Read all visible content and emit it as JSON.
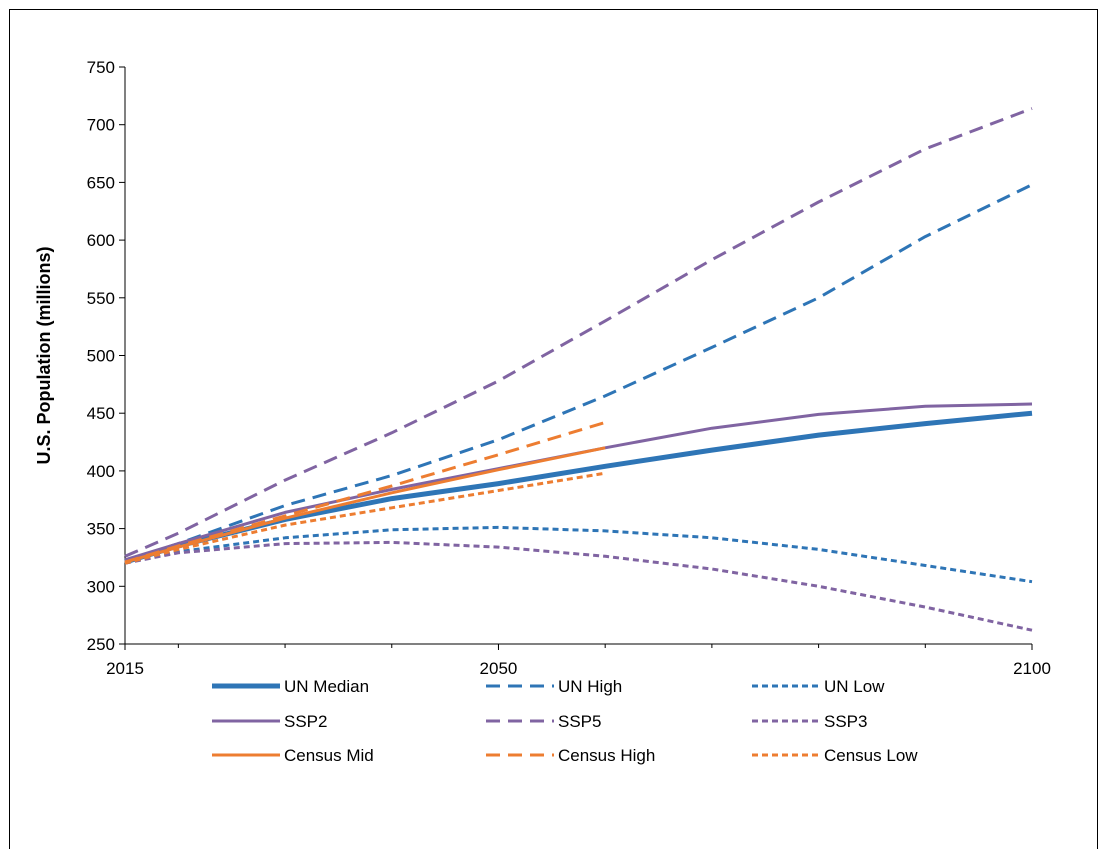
{
  "chart_data": {
    "type": "line",
    "title": "",
    "xlabel": "",
    "ylabel": "U.S. Population (millions)",
    "xlim": [
      2015,
      2100
    ],
    "ylim": [
      250,
      750
    ],
    "x_ticks": [
      2015,
      2050,
      2100
    ],
    "y_ticks": [
      250,
      300,
      350,
      400,
      450,
      500,
      550,
      600,
      650,
      700,
      750
    ],
    "grid": false,
    "legend_position": "bottom",
    "series": [
      {
        "name": "UN Median",
        "color": "#2E75B6",
        "dash": "solid",
        "width": "thick",
        "x": [
          2015,
          2020,
          2030,
          2040,
          2050,
          2060,
          2070,
          2080,
          2090,
          2100
        ],
        "y": [
          321,
          335,
          358,
          376,
          389,
          404,
          418,
          431,
          441,
          450
        ]
      },
      {
        "name": "UN High",
        "color": "#2E75B6",
        "dash": "dashed",
        "width": "normal",
        "x": [
          2015,
          2020,
          2030,
          2040,
          2050,
          2060,
          2070,
          2080,
          2090,
          2100
        ],
        "y": [
          322,
          337,
          370,
          396,
          427,
          465,
          507,
          550,
          603,
          648
        ]
      },
      {
        "name": "UN Low",
        "color": "#2E75B6",
        "dash": "dotted",
        "width": "normal",
        "x": [
          2015,
          2020,
          2030,
          2040,
          2050,
          2060,
          2070,
          2080,
          2090,
          2100
        ],
        "y": [
          320,
          330,
          342,
          349,
          351,
          348,
          342,
          332,
          318,
          304
        ]
      },
      {
        "name": "SSP2",
        "color": "#8064A2",
        "dash": "solid",
        "width": "normal",
        "x": [
          2015,
          2020,
          2030,
          2040,
          2050,
          2060,
          2070,
          2080,
          2090,
          2100
        ],
        "y": [
          323,
          337,
          364,
          384,
          402,
          420,
          437,
          449,
          456,
          458
        ]
      },
      {
        "name": "SSP5",
        "color": "#8064A2",
        "dash": "dashed",
        "width": "normal",
        "x": [
          2015,
          2020,
          2030,
          2040,
          2050,
          2060,
          2070,
          2080,
          2090,
          2100
        ],
        "y": [
          326,
          346,
          392,
          433,
          478,
          530,
          583,
          633,
          679,
          714
        ]
      },
      {
        "name": "SSP3",
        "color": "#8064A2",
        "dash": "dotted",
        "width": "normal",
        "x": [
          2015,
          2020,
          2030,
          2040,
          2050,
          2060,
          2070,
          2080,
          2090,
          2100
        ],
        "y": [
          320,
          329,
          337,
          338,
          334,
          326,
          315,
          300,
          282,
          262
        ]
      },
      {
        "name": "Census Mid",
        "color": "#ED7D31",
        "dash": "solid",
        "width": "normal",
        "x": [
          2015,
          2020,
          2030,
          2040,
          2050,
          2060
        ],
        "y": [
          321,
          334,
          359,
          381,
          401,
          420
        ]
      },
      {
        "name": "Census High",
        "color": "#ED7D31",
        "dash": "dashed",
        "width": "normal",
        "x": [
          2015,
          2020,
          2030,
          2040,
          2050,
          2060
        ],
        "y": [
          321,
          335,
          361,
          387,
          414,
          442
        ]
      },
      {
        "name": "Census Low",
        "color": "#ED7D31",
        "dash": "dotted",
        "width": "normal",
        "x": [
          2015,
          2020,
          2030,
          2040,
          2050,
          2060
        ],
        "y": [
          320,
          332,
          353,
          368,
          383,
          398
        ]
      }
    ]
  }
}
